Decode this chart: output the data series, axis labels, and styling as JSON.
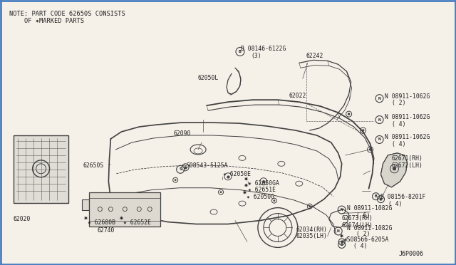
{
  "bg_color": "#f5f0e8",
  "border_color": "#4a7fc1",
  "line_color": "#404040",
  "text_color": "#202020",
  "note_line1": "NOTE: PART CODE 62650S CONSISTS",
  "note_line2": "    OF ✷MARKED PARTS",
  "diagram_id": "J6P0006",
  "label_fontsize": 5.8,
  "note_fontsize": 6.2
}
